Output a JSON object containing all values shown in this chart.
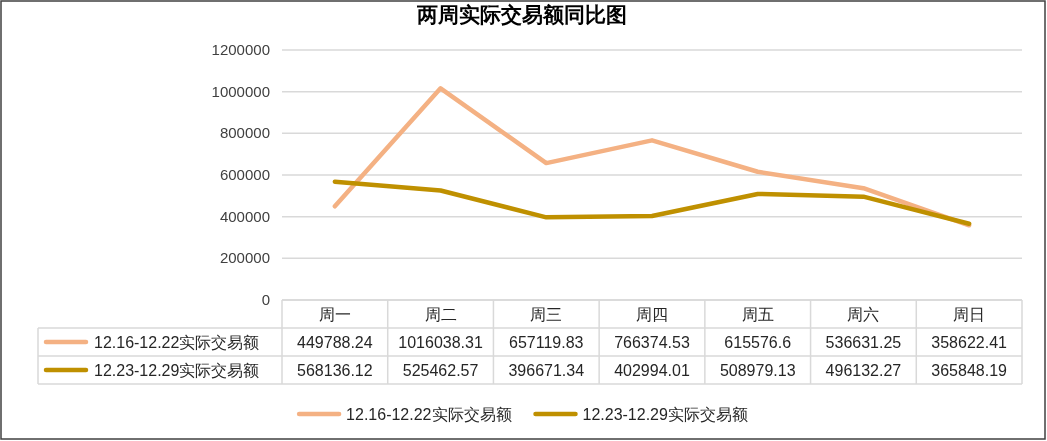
{
  "chart_data": {
    "type": "line",
    "title": "两周实际交易额同比图",
    "categories": [
      "周一",
      "周二",
      "周三",
      "周四",
      "周五",
      "周六",
      "周日"
    ],
    "series": [
      {
        "name": "12.16-12.22实际交易额",
        "color": "#f4b183",
        "values": [
          449788.24,
          1016038.31,
          657119.83,
          766374.53,
          615576.6,
          536631.25,
          358622.41
        ]
      },
      {
        "name": "12.23-12.29实际交易额",
        "color": "#bf9000",
        "values": [
          568136.12,
          525462.57,
          396671.34,
          402994.01,
          508979.13,
          496132.27,
          365848.19
        ]
      }
    ],
    "ylim": [
      0,
      1200000
    ],
    "yticks": [
      0,
      200000,
      400000,
      600000,
      800000,
      1000000,
      1200000
    ],
    "grid": "y",
    "legend": "bottom",
    "data_labels": true
  }
}
